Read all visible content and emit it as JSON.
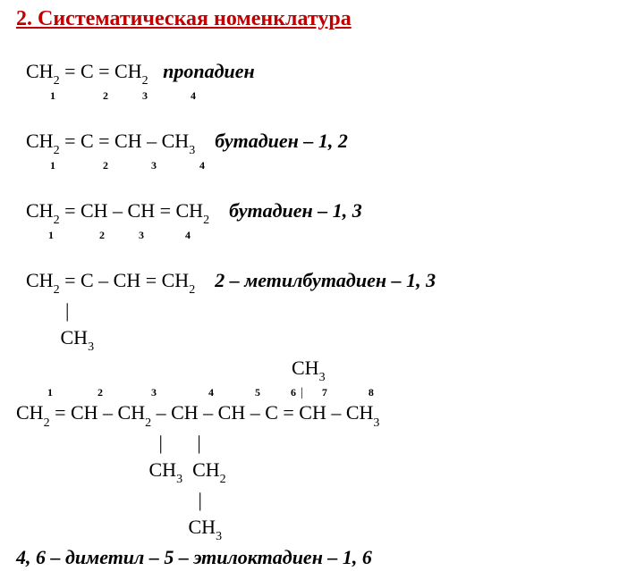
{
  "title_color": "#c00000",
  "text_color": "#000000",
  "background_color": "#ffffff",
  "title": "2. Систематическая номенклатура",
  "compound1": {
    "formula_html": "CH<sub class='sub'>2</sub> = C = CH<sub class='sub'>2</sub>",
    "name": "пропадиен"
  },
  "compound2": {
    "numbers": [
      "1",
      "2",
      "3",
      "4"
    ],
    "formula_html": "CH<sub class='sub'>2</sub> = C = CH – CH<sub class='sub'>3</sub>",
    "name": "бутадиен – 1, 2"
  },
  "compound3": {
    "numbers": [
      "1",
      "2",
      "3",
      "4"
    ],
    "formula_html": "CH<sub class='sub'>2</sub> = CH – CH = CH<sub class='sub'>2</sub>",
    "name": "бутадиен – 1, 3"
  },
  "compound4": {
    "numbers": [
      "1",
      "2",
      "3",
      "4"
    ],
    "formula_html": "CH<sub class='sub'>2</sub> = C – CH = CH<sub class='sub'>2</sub>",
    "name": "2 – метилбутадиен – 1, 3",
    "branch_bar": "          |",
    "branch_html": "         CH<sub class='sub'>3</sub>"
  },
  "compound5": {
    "top_branch_html": "                                                        CH<sub class='sub'>3</sub>",
    "numbers": [
      "1",
      "2",
      "3",
      "4",
      "5",
      "6",
      "7",
      "8"
    ],
    "num6_bar": "|",
    "formula_html": "CH<sub class='sub'>2</sub> = CH – CH<sub class='sub'>2</sub> – CH – CH – C = CH – CH<sub class='sub'>3</sub>",
    "bar_row": "                             |       |",
    "branch1_html": "                           CH<sub class='sub'>3</sub>  CH<sub class='sub'>2</sub>",
    "bar_row2": "                                     |",
    "branch2_html": "                                   CH<sub class='sub'>3</sub>",
    "name": "4, 6 – диметил – 5 – этилоктадиен – 1, 6"
  }
}
